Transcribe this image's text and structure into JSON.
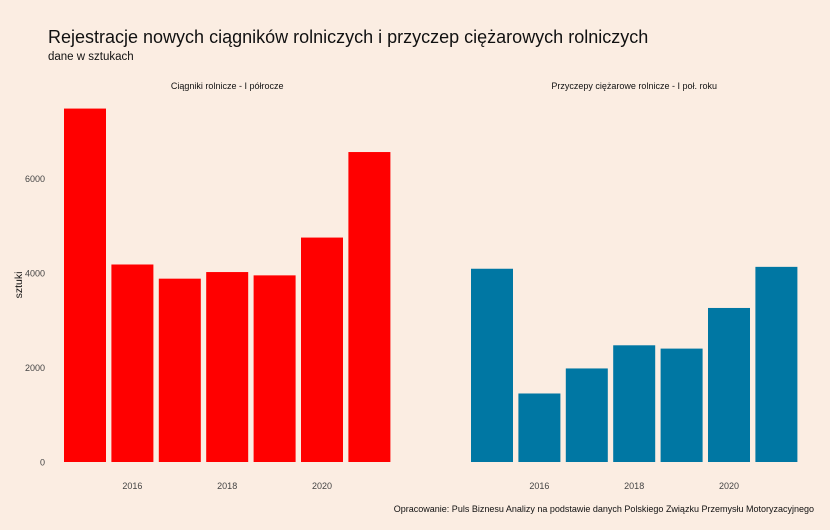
{
  "title": "Rejestracje nowych ciągników rolniczych i przyczep ciężarowych rolniczych",
  "subtitle": "dane w sztukach",
  "caption": "Opracowanie: Puls Biznesu Analizy na podstawie danych Polskiego Związku Przemysłu Motoryzacyjnego",
  "chart_data": {
    "type": "bar",
    "ylabel": "sztuki",
    "ylim": [
      0,
      7500
    ],
    "yticks": [
      0,
      2000,
      4000,
      6000
    ],
    "xticks": [
      2016,
      2018,
      2020
    ],
    "grid": false,
    "panels": [
      {
        "name": "Ciągniki rolnicze - I półrocze",
        "color": "#FF0000",
        "x": [
          2015,
          2016,
          2017,
          2018,
          2019,
          2020,
          2021
        ],
        "values": [
          7480,
          4180,
          3880,
          4020,
          3950,
          4750,
          6560
        ]
      },
      {
        "name": "Przyczepy ciężarowe rolnicze - I poł. roku",
        "color": "#0077A3",
        "x": [
          2015,
          2016,
          2017,
          2018,
          2019,
          2020,
          2021
        ],
        "values": [
          4090,
          1450,
          1980,
          2470,
          2400,
          3260,
          4130
        ]
      }
    ]
  }
}
